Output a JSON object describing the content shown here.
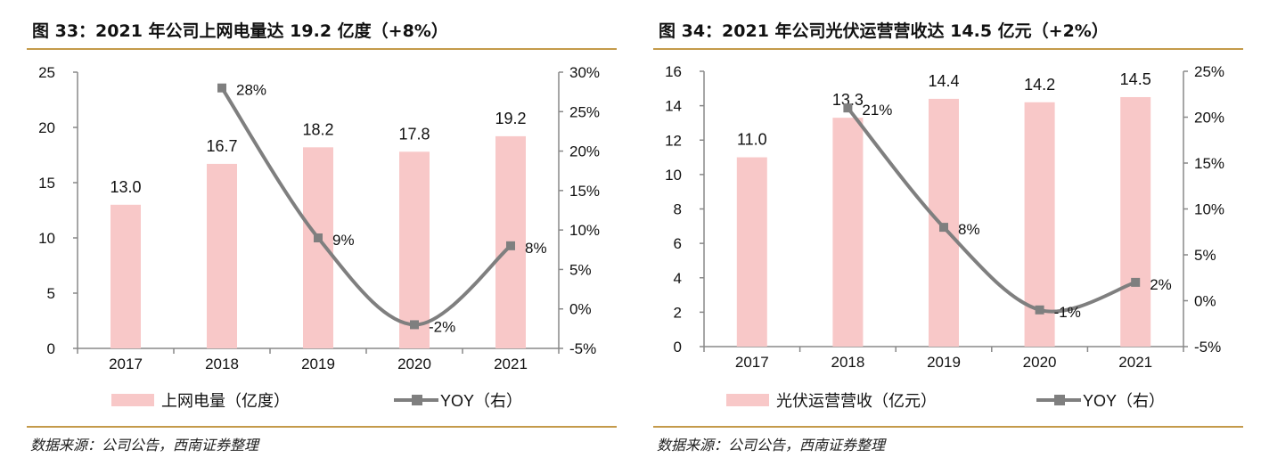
{
  "chart_data": [
    {
      "type": "bar+line",
      "title": "图 33：2021 年公司上网电量达 19.2 亿度（+8%）",
      "categories": [
        "2017",
        "2018",
        "2019",
        "2020",
        "2021"
      ],
      "series": [
        {
          "name": "上网电量（亿度）",
          "type": "bar",
          "axis": "left",
          "values": [
            13.0,
            16.7,
            18.2,
            17.8,
            19.2
          ],
          "labels": [
            "13.0",
            "16.7",
            "18.2",
            "17.8",
            "19.2"
          ],
          "color": "#f8c8c8"
        },
        {
          "name": "YOY（右）",
          "type": "line",
          "axis": "right",
          "values": [
            null,
            28,
            9,
            -2,
            8
          ],
          "labels": [
            "",
            "28%",
            "9%",
            "-2%",
            "8%"
          ],
          "color": "#7f7f7f"
        }
      ],
      "left_axis": {
        "min": 0,
        "max": 25,
        "ticks": [
          "0",
          "5",
          "10",
          "15",
          "20",
          "25"
        ]
      },
      "right_axis": {
        "min": -5,
        "max": 30,
        "ticks": [
          "-5%",
          "0%",
          "5%",
          "10%",
          "15%",
          "20%",
          "25%",
          "30%"
        ]
      },
      "legend": "bottom",
      "grid": false,
      "source": "数据来源：公司公告，西南证券整理"
    },
    {
      "type": "bar+line",
      "title": "图 34：2021 年公司光伏运营营收达 14.5 亿元（+2%）",
      "categories": [
        "2017",
        "2018",
        "2019",
        "2020",
        "2021"
      ],
      "series": [
        {
          "name": "光伏运营营收（亿元）",
          "type": "bar",
          "axis": "left",
          "values": [
            11.0,
            13.3,
            14.4,
            14.2,
            14.5
          ],
          "labels": [
            "11.0",
            "13.3",
            "14.4",
            "14.2",
            "14.5"
          ],
          "color": "#f8c8c8"
        },
        {
          "name": "YOY（右）",
          "type": "line",
          "axis": "right",
          "values": [
            null,
            21,
            8,
            -1,
            2
          ],
          "labels": [
            "",
            "21%",
            "8%",
            "-1%",
            "2%"
          ],
          "color": "#7f7f7f"
        }
      ],
      "left_axis": {
        "min": 0,
        "max": 16,
        "ticks": [
          "0",
          "2",
          "4",
          "6",
          "8",
          "10",
          "12",
          "14",
          "16"
        ]
      },
      "right_axis": {
        "min": -5,
        "max": 25,
        "ticks": [
          "-5%",
          "0%",
          "5%",
          "10%",
          "15%",
          "20%",
          "25%"
        ]
      },
      "legend": "bottom",
      "grid": false,
      "source": "数据来源：公司公告，西南证券整理"
    }
  ]
}
